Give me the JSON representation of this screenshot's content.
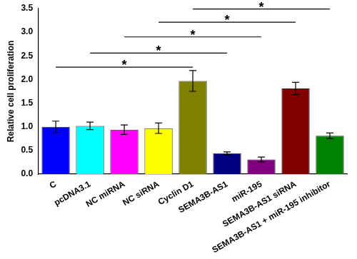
{
  "chart_data": {
    "type": "bar",
    "y_label": "Relative cell proliferation",
    "categories": [
      "C",
      "pcDNA3.1",
      "NC miRNA",
      "NC siRNA",
      "Cyclin D1",
      "SEMA3B-AS1",
      "miR-195",
      "SEMA3B-AS1 siRNA",
      "SEMA3B-AS1 + miR-195 inhibitor"
    ],
    "values": [
      1.0,
      1.02,
      0.94,
      0.97,
      1.97,
      0.44,
      0.31,
      1.81,
      0.81
    ],
    "errors": [
      0.12,
      0.08,
      0.1,
      0.11,
      0.22,
      0.03,
      0.05,
      0.13,
      0.06
    ],
    "colors": [
      "#0000ff",
      "#00ffff",
      "#ff00ff",
      "#ffff00",
      "#808000",
      "#000080",
      "#800080",
      "#800000",
      "#008000"
    ],
    "ylim": [
      0,
      3.5
    ],
    "yticks": [
      {
        "value": 0,
        "label": "0.0"
      },
      {
        "value": 0.5,
        "label": "0.5"
      },
      {
        "value": 1,
        "label": "1.0"
      },
      {
        "value": 1.5,
        "label": "1.5"
      },
      {
        "value": 2,
        "label": "2.0"
      },
      {
        "value": 2.5,
        "label": "2.5"
      },
      {
        "value": 3,
        "label": "3.0"
      },
      {
        "value": 3.5,
        "label": "3.5"
      }
    ],
    "grid": false,
    "annotations": [
      {
        "from": "C",
        "to": "Cyclin D1",
        "y": 2.26,
        "label": "*"
      },
      {
        "from": "pcDNA3.1",
        "to": "SEMA3B-AS1",
        "y": 2.56,
        "label": "*"
      },
      {
        "from": "NC miRNA",
        "to": "miR-195",
        "y": 2.9,
        "label": "*"
      },
      {
        "from": "NC siRNA",
        "to": "SEMA3B-AS1 siRNA",
        "y": 3.21,
        "label": "*"
      },
      {
        "from": "Cyclin D1",
        "to": "SEMA3B-AS1 + miR-195 inhibitor",
        "y": 3.49,
        "label": "*"
      }
    ]
  }
}
